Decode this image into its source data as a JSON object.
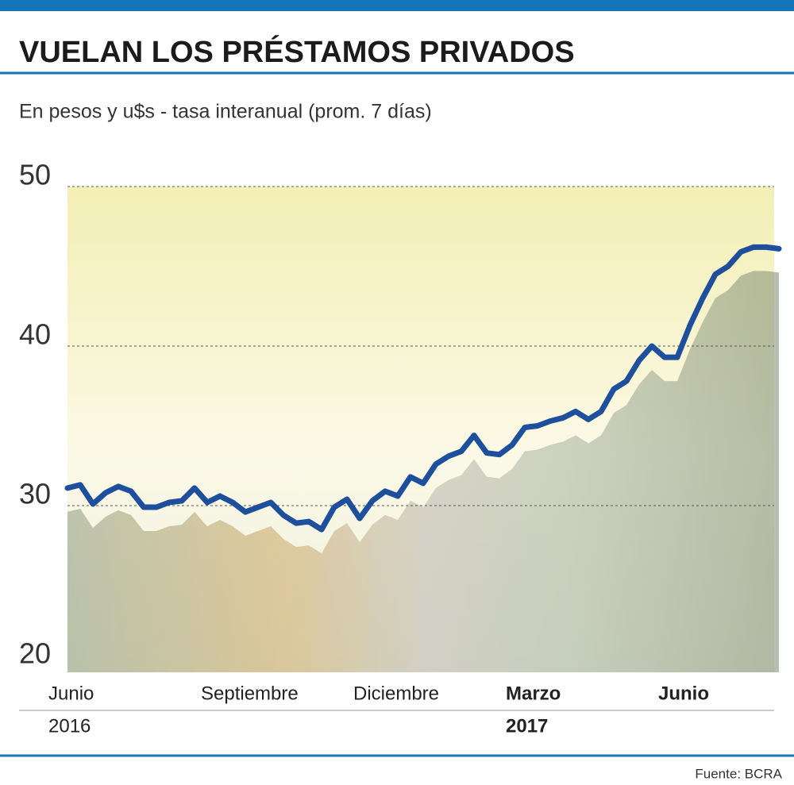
{
  "chart_data": {
    "type": "line",
    "title": "VUELAN LOS PRÉSTAMOS PRIVADOS",
    "subtitle": "En pesos y u$s - tasa interanual (prom. 7 días)",
    "source": "Fuente: BCRA",
    "categories": [
      "Junio",
      null,
      null,
      null,
      null,
      null,
      null,
      null,
      null,
      null,
      null,
      null,
      "Septiembre",
      null,
      null,
      null,
      null,
      null,
      null,
      null,
      null,
      null,
      null,
      null,
      "Diciembre",
      null,
      null,
      null,
      null,
      null,
      null,
      null,
      null,
      null,
      null,
      null,
      "Marzo",
      null,
      null,
      null,
      null,
      null,
      null,
      null,
      null,
      null,
      null,
      null,
      "Junio",
      null,
      null,
      null,
      null,
      null,
      null,
      null,
      null
    ],
    "year_labels": [
      "2016",
      null,
      null,
      null,
      null,
      null,
      null,
      null,
      null,
      null,
      null,
      null,
      null,
      null,
      null,
      null,
      null,
      null,
      null,
      null,
      null,
      null,
      null,
      null,
      null,
      null,
      null,
      null,
      null,
      null,
      null,
      null,
      null,
      null,
      null,
      null,
      "2017",
      null,
      null,
      null,
      null,
      null,
      null,
      null,
      null,
      null,
      null,
      null,
      null,
      null,
      null,
      null,
      null,
      null,
      null,
      null,
      null
    ],
    "series": [
      {
        "name": "Préstamos privados",
        "color": "#1d4f9c",
        "values": [
          31.1,
          31.3,
          30.1,
          30.8,
          31.2,
          30.9,
          29.9,
          29.9,
          30.2,
          30.3,
          31.1,
          30.2,
          30.6,
          30.2,
          29.6,
          29.9,
          30.2,
          29.4,
          28.9,
          29.0,
          28.5,
          29.9,
          30.4,
          29.2,
          30.3,
          30.9,
          30.6,
          31.8,
          31.4,
          32.6,
          33.1,
          33.4,
          34.4,
          33.3,
          33.2,
          33.8,
          34.9,
          35.0,
          35.3,
          35.5,
          35.9,
          35.4,
          35.9,
          37.3,
          37.8,
          39.1,
          40.0,
          39.3,
          39.3,
          41.3,
          43.0,
          44.5,
          45.0,
          45.9,
          46.2,
          46.2,
          46.1
        ]
      }
    ],
    "ylim": [
      20,
      50
    ],
    "yticks": [
      20,
      30,
      40,
      50
    ],
    "grid": true
  }
}
